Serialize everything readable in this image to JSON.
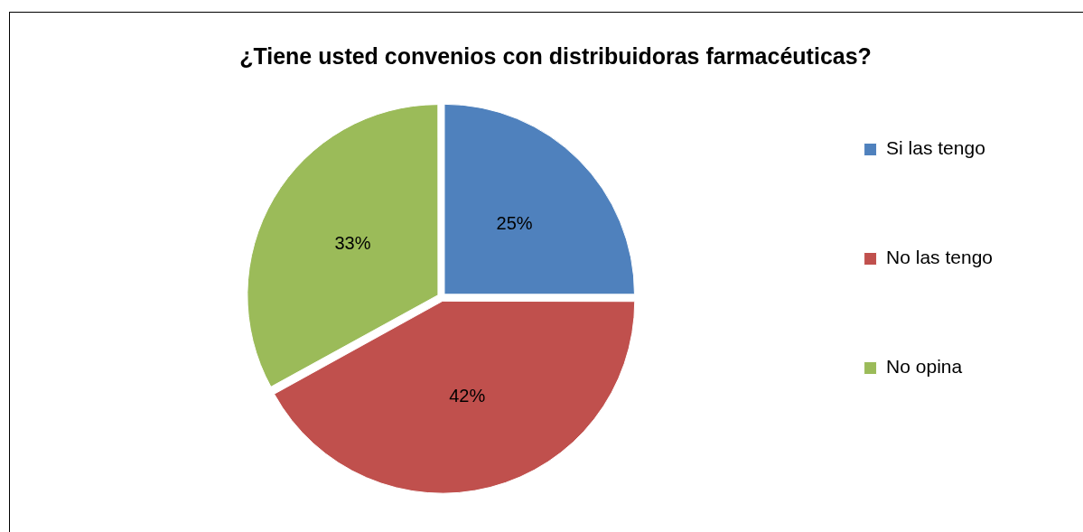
{
  "chart_data": {
    "type": "pie",
    "title": "¿Tiene usted convenios con distribuidoras farmacéuticas?",
    "categories": [
      "Si las tengo",
      "No las tengo",
      "No opina"
    ],
    "values": [
      25,
      42,
      33
    ],
    "colors": [
      "#4f81bd",
      "#c0504d",
      "#9bbb59"
    ],
    "value_labels": [
      "25%",
      "42%",
      "33%"
    ],
    "legend": "right"
  }
}
